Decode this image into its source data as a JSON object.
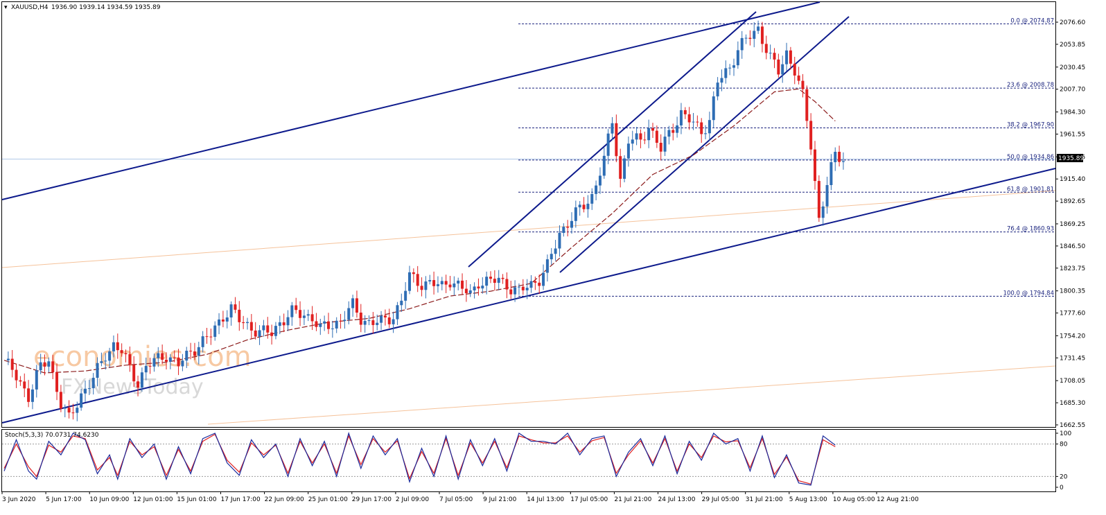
{
  "header": {
    "symbol": "XAUUSD,H4",
    "ohlc": "1936.90 1939.14 1934.59 1935.89"
  },
  "indicator": {
    "label": "Stoch(5,3,3) 70.0731 74.6230",
    "levels": [
      "100",
      "80",
      "20",
      "0"
    ]
  },
  "watermark": {
    "line1": "economies.com",
    "line2": "FXNewsToday"
  },
  "current_price_label": "1935.89",
  "colors": {
    "bull": "#2e6db4",
    "bear": "#e02020",
    "trendline": "#0d1a8c",
    "ma": "#8b1a1a",
    "fib": "#1a237e",
    "stoch_main": "#1a2a9c",
    "stoch_signal": "#e02020",
    "thin_trend": "#f5c29a",
    "price_line": "#b0c8e8"
  },
  "chart_data": {
    "type": "candlestick",
    "title": "XAUUSD,H4",
    "ylim": [
      1662.55,
      2088
    ],
    "y_ticks": [
      "2076.60",
      "2053.85",
      "2030.45",
      "2007.70",
      "1984.30",
      "1961.55",
      "1938.15",
      "1915.40",
      "1892.65",
      "1869.25",
      "1846.50",
      "1823.75",
      "1800.35",
      "1777.60",
      "1754.20",
      "1731.45",
      "1708.05",
      "1685.30",
      "1662.55"
    ],
    "x_labels": [
      "3 Jun 2020",
      "5 Jun 17:00",
      "10 Jun 09:00",
      "12 Jun 01:00",
      "15 Jun 01:00",
      "17 Jun 17:00",
      "22 Jun 09:00",
      "25 Jun 01:00",
      "29 Jun 17:00",
      "2 Jul 09:00",
      "7 Jul 05:00",
      "9 Jul 21:00",
      "14 Jul 13:00",
      "17 Jul 05:00",
      "21 Jul 21:00",
      "24 Jul 13:00",
      "29 Jul 05:00",
      "31 Jul 21:00",
      "5 Aug 13:00",
      "10 Aug 05:00",
      "12 Aug 21:00"
    ],
    "fibonacci": [
      {
        "label": "0.0 @ 2074.87",
        "value": 2074.87
      },
      {
        "label": "23.6 @ 2008.78",
        "value": 2008.78
      },
      {
        "label": "38.2 @ 1967.90",
        "value": 1967.9
      },
      {
        "label": "50.0 @ 1934.86",
        "value": 1934.86
      },
      {
        "label": "61.8 @ 1901.81",
        "value": 1901.81
      },
      {
        "label": "76.4 @ 1860.93",
        "value": 1860.93
      },
      {
        "label": "100.0 @ 1794.84",
        "value": 1794.84
      }
    ],
    "last_price": 1935.89,
    "price_path": [
      [
        0,
        1729
      ],
      [
        4,
        1706
      ],
      [
        6,
        1692
      ],
      [
        9,
        1722
      ],
      [
        11,
        1730
      ],
      [
        14,
        1684
      ],
      [
        16,
        1668
      ],
      [
        19,
        1694
      ],
      [
        22,
        1710
      ],
      [
        25,
        1735
      ],
      [
        27,
        1745
      ],
      [
        29,
        1738
      ],
      [
        31,
        1720
      ],
      [
        33,
        1706
      ],
      [
        35,
        1722
      ],
      [
        37,
        1728
      ],
      [
        40,
        1735
      ],
      [
        43,
        1724
      ],
      [
        46,
        1738
      ],
      [
        48,
        1745
      ],
      [
        51,
        1755
      ],
      [
        54,
        1775
      ],
      [
        56,
        1782
      ],
      [
        58,
        1770
      ],
      [
        60,
        1765
      ],
      [
        63,
        1758
      ],
      [
        66,
        1757
      ],
      [
        68,
        1768
      ],
      [
        71,
        1778
      ],
      [
        74,
        1776
      ],
      [
        76,
        1773
      ],
      [
        78,
        1761
      ],
      [
        81,
        1766
      ],
      [
        83,
        1770
      ],
      [
        86,
        1785
      ],
      [
        88,
        1772
      ],
      [
        90,
        1768
      ],
      [
        93,
        1768
      ],
      [
        96,
        1775
      ],
      [
        98,
        1790
      ],
      [
        100,
        1815
      ],
      [
        103,
        1808
      ],
      [
        105,
        1808
      ],
      [
        108,
        1805
      ],
      [
        110,
        1812
      ],
      [
        113,
        1802
      ],
      [
        115,
        1797
      ],
      [
        117,
        1810
      ],
      [
        120,
        1809
      ],
      [
        122,
        1813
      ],
      [
        125,
        1803
      ],
      [
        127,
        1798
      ],
      [
        129,
        1806
      ],
      [
        132,
        1812
      ],
      [
        134,
        1825
      ],
      [
        137,
        1860
      ],
      [
        139,
        1870
      ],
      [
        142,
        1884
      ],
      [
        145,
        1898
      ],
      [
        148,
        1935
      ],
      [
        150,
        1975
      ],
      [
        152,
        1915
      ],
      [
        154,
        1955
      ],
      [
        157,
        1955
      ],
      [
        159,
        1970
      ],
      [
        162,
        1945
      ],
      [
        164,
        1962
      ],
      [
        167,
        1983
      ],
      [
        170,
        1972
      ],
      [
        172,
        1965
      ],
      [
        174,
        1975
      ],
      [
        176,
        2015
      ],
      [
        179,
        2030
      ],
      [
        181,
        2050
      ],
      [
        184,
        2062
      ],
      [
        186,
        2070
      ],
      [
        189,
        2040
      ],
      [
        191,
        2025
      ],
      [
        193,
        2045
      ],
      [
        195,
        2028
      ],
      [
        197,
        2000
      ],
      [
        199,
        1950
      ],
      [
        201,
        1875
      ],
      [
        203,
        1910
      ],
      [
        205,
        1940
      ],
      [
        207,
        1936
      ]
    ],
    "moving_average": [
      [
        0,
        1729
      ],
      [
        10,
        1716
      ],
      [
        20,
        1718
      ],
      [
        30,
        1724
      ],
      [
        40,
        1727
      ],
      [
        50,
        1735
      ],
      [
        60,
        1750
      ],
      [
        70,
        1760
      ],
      [
        80,
        1768
      ],
      [
        90,
        1772
      ],
      [
        100,
        1782
      ],
      [
        110,
        1795
      ],
      [
        120,
        1800
      ],
      [
        130,
        1808
      ],
      [
        140,
        1845
      ],
      [
        150,
        1880
      ],
      [
        160,
        1920
      ],
      [
        170,
        1940
      ],
      [
        180,
        1970
      ],
      [
        190,
        2005
      ],
      [
        196,
        2008
      ],
      [
        200,
        1995
      ],
      [
        205,
        1975
      ]
    ],
    "stochastic_main": [
      [
        0,
        30
      ],
      [
        3,
        88
      ],
      [
        6,
        30
      ],
      [
        8,
        15
      ],
      [
        11,
        85
      ],
      [
        14,
        60
      ],
      [
        17,
        100
      ],
      [
        20,
        88
      ],
      [
        23,
        25
      ],
      [
        26,
        60
      ],
      [
        28,
        15
      ],
      [
        31,
        90
      ],
      [
        34,
        55
      ],
      [
        37,
        80
      ],
      [
        40,
        15
      ],
      [
        43,
        75
      ],
      [
        46,
        25
      ],
      [
        49,
        90
      ],
      [
        52,
        100
      ],
      [
        55,
        45
      ],
      [
        58,
        22
      ],
      [
        61,
        88
      ],
      [
        64,
        55
      ],
      [
        67,
        80
      ],
      [
        70,
        20
      ],
      [
        73,
        90
      ],
      [
        76,
        40
      ],
      [
        79,
        85
      ],
      [
        82,
        20
      ],
      [
        85,
        100
      ],
      [
        88,
        35
      ],
      [
        91,
        95
      ],
      [
        94,
        60
      ],
      [
        97,
        90
      ],
      [
        100,
        10
      ],
      [
        103,
        72
      ],
      [
        106,
        20
      ],
      [
        109,
        95
      ],
      [
        112,
        15
      ],
      [
        115,
        88
      ],
      [
        118,
        40
      ],
      [
        121,
        90
      ],
      [
        124,
        30
      ],
      [
        127,
        100
      ],
      [
        130,
        85
      ],
      [
        133,
        85
      ],
      [
        136,
        80
      ],
      [
        139,
        100
      ],
      [
        142,
        60
      ],
      [
        145,
        90
      ],
      [
        148,
        95
      ],
      [
        151,
        20
      ],
      [
        154,
        65
      ],
      [
        157,
        90
      ],
      [
        160,
        40
      ],
      [
        163,
        95
      ],
      [
        166,
        25
      ],
      [
        169,
        85
      ],
      [
        172,
        50
      ],
      [
        175,
        100
      ],
      [
        178,
        80
      ],
      [
        181,
        90
      ],
      [
        184,
        30
      ],
      [
        187,
        95
      ],
      [
        190,
        18
      ],
      [
        193,
        60
      ],
      [
        196,
        8
      ],
      [
        199,
        4
      ],
      [
        202,
        95
      ],
      [
        205,
        78
      ]
    ],
    "stochastic_signal": [
      [
        0,
        35
      ],
      [
        3,
        80
      ],
      [
        6,
        38
      ],
      [
        8,
        20
      ],
      [
        11,
        78
      ],
      [
        14,
        65
      ],
      [
        17,
        95
      ],
      [
        20,
        90
      ],
      [
        23,
        32
      ],
      [
        26,
        55
      ],
      [
        28,
        22
      ],
      [
        31,
        85
      ],
      [
        34,
        60
      ],
      [
        37,
        75
      ],
      [
        40,
        22
      ],
      [
        43,
        70
      ],
      [
        46,
        30
      ],
      [
        49,
        85
      ],
      [
        52,
        98
      ],
      [
        55,
        50
      ],
      [
        58,
        28
      ],
      [
        61,
        82
      ],
      [
        64,
        60
      ],
      [
        67,
        78
      ],
      [
        70,
        26
      ],
      [
        73,
        85
      ],
      [
        76,
        45
      ],
      [
        79,
        80
      ],
      [
        82,
        26
      ],
      [
        85,
        95
      ],
      [
        88,
        42
      ],
      [
        91,
        90
      ],
      [
        94,
        65
      ],
      [
        97,
        86
      ],
      [
        100,
        16
      ],
      [
        103,
        66
      ],
      [
        106,
        26
      ],
      [
        109,
        90
      ],
      [
        112,
        22
      ],
      [
        115,
        82
      ],
      [
        118,
        45
      ],
      [
        121,
        85
      ],
      [
        124,
        36
      ],
      [
        127,
        95
      ],
      [
        130,
        88
      ],
      [
        133,
        82
      ],
      [
        136,
        82
      ],
      [
        139,
        95
      ],
      [
        142,
        65
      ],
      [
        145,
        86
      ],
      [
        148,
        92
      ],
      [
        151,
        26
      ],
      [
        154,
        60
      ],
      [
        157,
        86
      ],
      [
        160,
        45
      ],
      [
        163,
        90
      ],
      [
        166,
        30
      ],
      [
        169,
        80
      ],
      [
        172,
        55
      ],
      [
        175,
        95
      ],
      [
        178,
        84
      ],
      [
        181,
        86
      ],
      [
        184,
        36
      ],
      [
        187,
        90
      ],
      [
        190,
        24
      ],
      [
        193,
        56
      ],
      [
        196,
        12
      ],
      [
        199,
        6
      ],
      [
        202,
        88
      ],
      [
        205,
        75
      ]
    ]
  }
}
